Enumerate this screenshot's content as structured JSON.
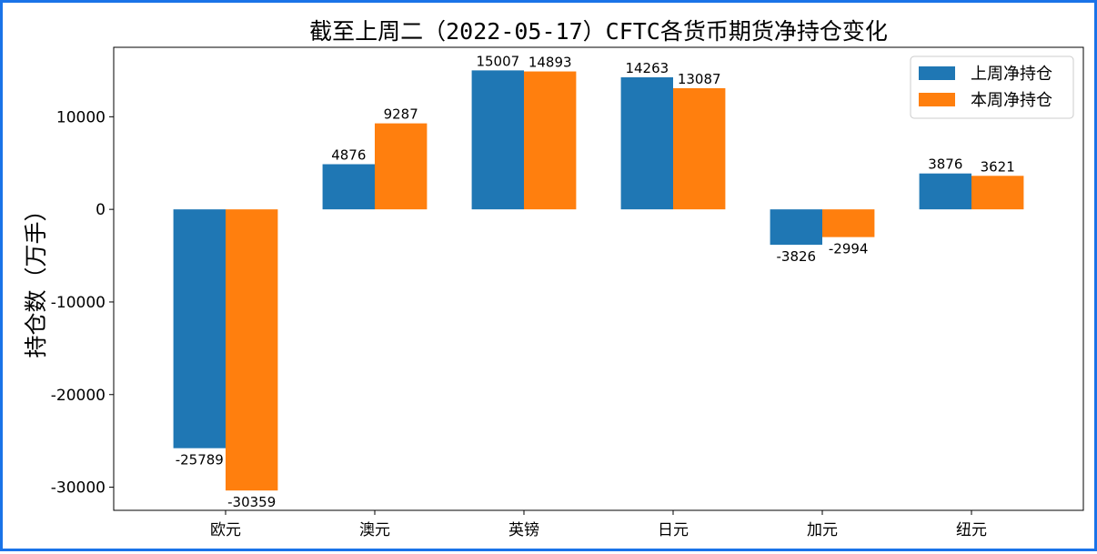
{
  "chart_data": {
    "type": "bar",
    "title": "截至上周二（2022-05-17）CFTC各货币期货净持仓变化",
    "xlabel": "",
    "ylabel": "持仓数（万手）",
    "categories": [
      "欧元",
      "澳元",
      "英镑",
      "日元",
      "加元",
      "纽元"
    ],
    "series": [
      {
        "name": "上周净持仓",
        "color": "#1f77b4",
        "values": [
          -25789,
          4876,
          15007,
          14263,
          -3826,
          3876
        ]
      },
      {
        "name": "本周净持仓",
        "color": "#ff7f0e",
        "values": [
          -30359,
          9287,
          14893,
          13087,
          -2994,
          3621
        ]
      }
    ],
    "ylim": [
      -32500,
      17500
    ],
    "yticks": [
      -30000,
      -20000,
      -10000,
      0,
      10000
    ],
    "legend_position": "top-right",
    "grid": false
  }
}
